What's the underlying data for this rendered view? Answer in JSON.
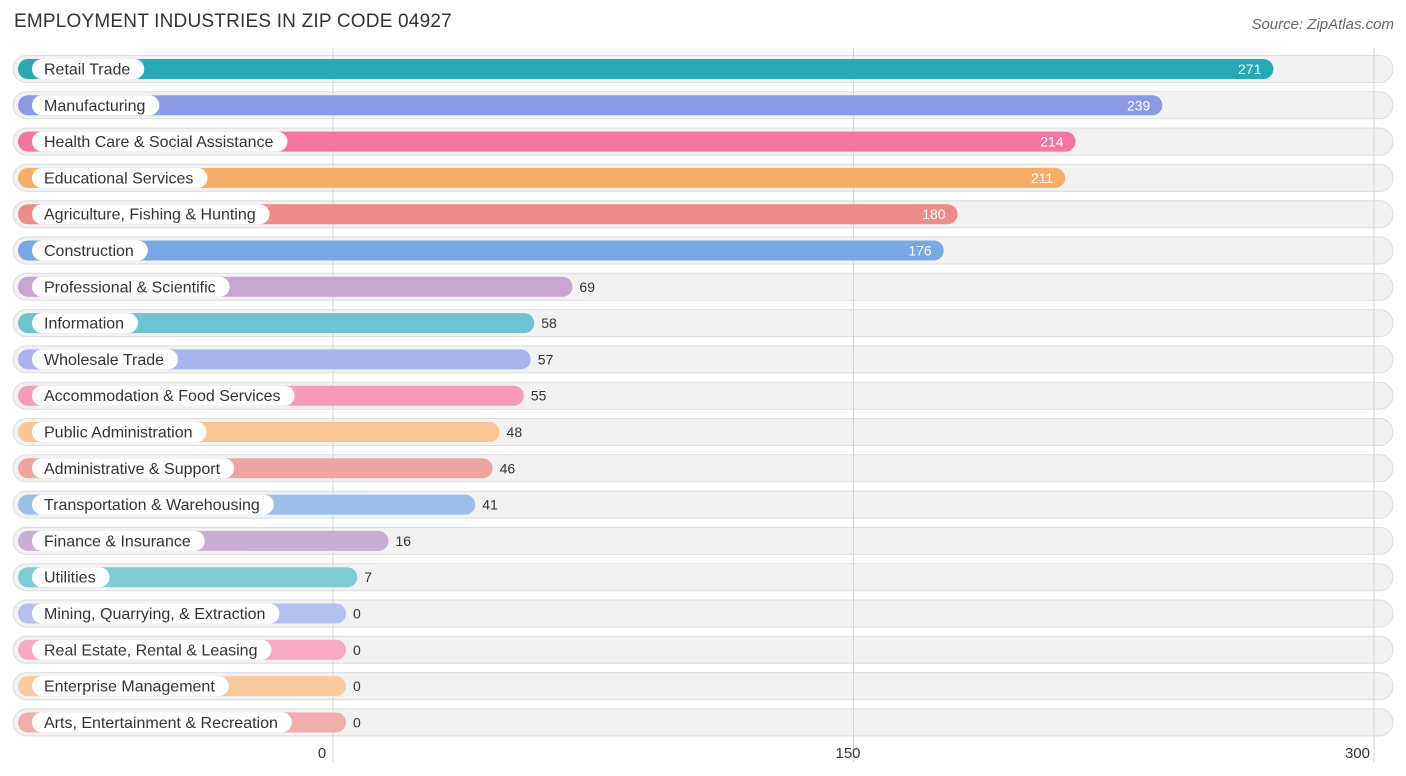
{
  "chart_data": {
    "type": "bar",
    "orientation": "horizontal",
    "title": "EMPLOYMENT INDUSTRIES IN ZIP CODE 04927",
    "source": "Source: ZipAtlas.com",
    "xlim": [
      0,
      300
    ],
    "xticks": [
      0,
      150,
      300
    ],
    "xtick_labels": [
      "0",
      "150",
      "300"
    ],
    "categories": [
      "Retail Trade",
      "Manufacturing",
      "Health Care & Social Assistance",
      "Educational Services",
      "Agriculture, Fishing & Hunting",
      "Construction",
      "Professional & Scientific",
      "Information",
      "Wholesale Trade",
      "Accommodation & Food Services",
      "Public Administration",
      "Administrative & Support",
      "Transportation & Warehousing",
      "Finance & Insurance",
      "Utilities",
      "Mining, Quarrying, & Extraction",
      "Real Estate, Rental & Leasing",
      "Enterprise Management",
      "Arts, Entertainment & Recreation"
    ],
    "values": [
      271,
      239,
      214,
      211,
      180,
      176,
      69,
      58,
      57,
      55,
      48,
      46,
      41,
      16,
      7,
      0,
      0,
      0,
      0
    ],
    "value_labels": [
      "271",
      "239",
      "214",
      "211",
      "180",
      "176",
      "69",
      "58",
      "57",
      "55",
      "48",
      "46",
      "41",
      "16",
      "7",
      "0",
      "0",
      "0",
      "0"
    ],
    "colors": [
      "#27a8b5",
      "#8b9be3",
      "#f4769f",
      "#f8ae69",
      "#ec8b87",
      "#78a8e3",
      "#c6a5cf",
      "#6ec4ce",
      "#a9b4ec",
      "#f69cba",
      "#f9c594",
      "#efa6a3",
      "#9cbfea",
      "#c8aed0",
      "#7ecbd4",
      "#b5bff0",
      "#f7a9c3",
      "#f9caa0",
      "#efaeac"
    ]
  }
}
